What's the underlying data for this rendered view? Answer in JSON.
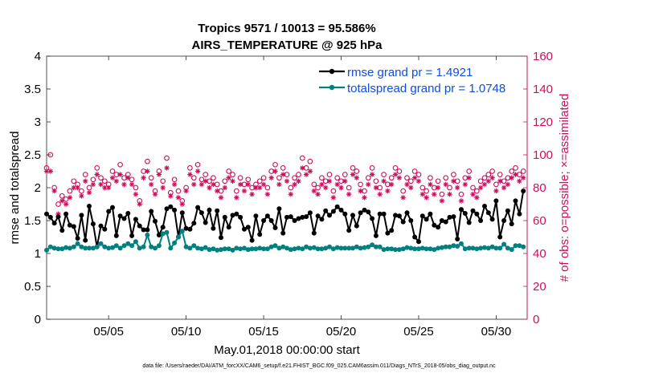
{
  "chart_data": {
    "type": "line",
    "title_line1": "Tropics 9571 / 10013 = 95.586%",
    "title_line2": "AIRS_TEMPERATURE @ 925 hPa",
    "xlabel": "May.01,2018 00:00:00 start",
    "ylabel_left": "rmse and totalspread",
    "ylabel_right": "# of obs: o=possible; ×=assimilated",
    "footer": "data file: /Users/raeder/DAI/ATM_forcXX/CAM6_setup/f.e21.FHIST_BGC.f09_025.CAM6assim.011/Diags_NTrS_2018-05/obs_diag_output.nc",
    "xlim": [
      1,
      32
    ],
    "ylim_left": [
      0,
      4
    ],
    "ylim_right": [
      0,
      160
    ],
    "x_ticks": [
      5,
      10,
      15,
      20,
      25,
      30
    ],
    "x_tick_labels": [
      "05/05",
      "05/10",
      "05/15",
      "05/20",
      "05/25",
      "05/30"
    ],
    "left_ticks": [
      "0",
      "0.5",
      "1",
      "1.5",
      "2",
      "2.5",
      "3",
      "3.5",
      "4"
    ],
    "right_ticks": [
      "0",
      "20",
      "40",
      "60",
      "80",
      "100",
      "120",
      "140",
      "160"
    ],
    "colors": {
      "rmse": "#000000",
      "spread": "#008080",
      "obs": "#cc0f5c",
      "legend_text": "#0f4ddc"
    },
    "n_points": 124,
    "x_start": 1.0,
    "x_step": 0.25,
    "series": [
      {
        "name": "rmse",
        "legend": "rmse grand pr = 1.4921",
        "values": [
          1.6,
          1.55,
          1.46,
          1.56,
          1.35,
          1.6,
          1.43,
          1.41,
          1.23,
          1.58,
          1.2,
          1.72,
          1.45,
          1.1,
          1.42,
          1.37,
          1.64,
          1.7,
          1.27,
          1.57,
          1.53,
          1.61,
          1.27,
          1.52,
          1.42,
          1.36,
          1.36,
          1.64,
          1.49,
          1.28,
          1.4,
          1.68,
          1.71,
          1.66,
          1.25,
          1.62,
          1.38,
          1.37,
          1.46,
          1.7,
          1.62,
          1.47,
          1.66,
          1.38,
          1.65,
          1.24,
          1.55,
          1.4,
          1.58,
          1.6,
          1.55,
          1.37,
          1.4,
          1.2,
          1.57,
          1.29,
          1.5,
          1.57,
          1.5,
          1.39,
          1.68,
          1.31,
          1.55,
          1.56,
          1.5,
          1.53,
          1.55,
          1.56,
          1.62,
          1.31,
          1.57,
          1.52,
          1.65,
          1.58,
          1.64,
          1.71,
          1.66,
          1.6,
          1.35,
          1.58,
          1.42,
          1.62,
          1.66,
          1.63,
          1.53,
          1.27,
          1.6,
          1.6,
          1.31,
          1.35,
          1.58,
          1.57,
          1.48,
          1.62,
          1.5,
          1.25,
          1.18,
          1.57,
          1.52,
          1.6,
          1.43,
          1.4,
          1.5,
          1.48,
          1.55,
          1.56,
          1.22,
          1.67,
          1.61,
          1.47,
          1.65,
          1.6,
          1.5,
          1.72,
          1.62,
          1.52,
          1.8,
          1.25,
          1.5,
          1.65,
          1.45,
          1.8,
          1.6,
          1.95
        ]
      },
      {
        "name": "totalspread",
        "legend": "totalspread grand pr = 1.0748",
        "values": [
          1.05,
          1.1,
          1.08,
          1.07,
          1.07,
          1.09,
          1.08,
          1.1,
          1.15,
          1.1,
          1.08,
          1.08,
          1.08,
          1.1,
          1.15,
          1.1,
          1.08,
          1.09,
          1.12,
          1.08,
          1.12,
          1.15,
          1.12,
          1.18,
          1.08,
          1.1,
          1.28,
          1.1,
          1.08,
          1.12,
          1.3,
          1.32,
          1.08,
          1.16,
          1.25,
          1.34,
          1.1,
          1.08,
          1.12,
          1.08,
          1.07,
          1.09,
          1.06,
          1.07,
          1.05,
          1.06,
          1.07,
          1.07,
          1.05,
          1.08,
          1.07,
          1.08,
          1.06,
          1.07,
          1.07,
          1.08,
          1.07,
          1.07,
          1.1,
          1.12,
          1.08,
          1.1,
          1.08,
          1.06,
          1.07,
          1.08,
          1.07,
          1.1,
          1.08,
          1.09,
          1.07,
          1.07,
          1.08,
          1.1,
          1.07,
          1.09,
          1.08,
          1.08,
          1.08,
          1.08,
          1.1,
          1.08,
          1.09,
          1.1,
          1.13,
          1.1,
          1.1,
          1.06,
          1.07,
          1.07,
          1.06,
          1.06,
          1.07,
          1.09,
          1.08,
          1.07,
          1.07,
          1.08,
          1.07,
          1.07,
          1.06,
          1.08,
          1.09,
          1.1,
          1.1,
          1.12,
          1.11,
          1.15,
          1.07,
          1.08,
          1.08,
          1.07,
          1.08,
          1.09,
          1.08,
          1.1,
          1.08,
          1.08,
          1.14,
          1.08,
          1.06,
          1.12,
          1.12,
          1.1
        ]
      }
    ],
    "obs_possible": [
      92,
      100,
      80,
      70,
      75,
      73,
      78,
      84,
      82,
      78,
      88,
      80,
      85,
      92,
      86,
      84,
      82,
      90,
      88,
      94,
      86,
      88,
      85,
      80,
      72,
      90,
      96,
      86,
      78,
      90,
      84,
      98,
      77,
      85,
      78,
      72,
      80,
      92,
      86,
      94,
      85,
      88,
      84,
      86,
      82,
      78,
      84,
      90,
      88,
      78,
      86,
      82,
      85,
      80,
      82,
      84,
      86,
      80,
      90,
      94,
      86,
      92,
      88,
      80,
      86,
      88,
      98,
      92,
      96,
      82,
      80,
      86,
      84,
      88,
      78,
      86,
      84,
      88,
      80,
      92,
      90,
      82,
      78,
      86,
      92,
      84,
      80,
      88,
      82,
      86,
      92,
      90,
      78,
      86,
      84,
      90,
      88,
      80,
      78,
      86,
      80,
      84,
      76,
      86,
      80,
      88,
      84,
      76,
      86,
      90,
      80,
      78,
      84,
      86,
      88,
      90,
      82,
      88,
      84,
      86,
      90,
      92,
      88,
      90
    ],
    "obs_assimilated": [
      90,
      90,
      78,
      64,
      72,
      70,
      74,
      80,
      80,
      75,
      84,
      77,
      82,
      88,
      82,
      80,
      80,
      86,
      84,
      88,
      82,
      86,
      82,
      76,
      70,
      86,
      90,
      82,
      76,
      88,
      80,
      92,
      75,
      82,
      74,
      70,
      78,
      88,
      82,
      90,
      82,
      84,
      80,
      82,
      78,
      74,
      80,
      86,
      84,
      74,
      82,
      78,
      82,
      76,
      80,
      80,
      82,
      76,
      86,
      90,
      82,
      88,
      84,
      76,
      82,
      84,
      92,
      88,
      90,
      78,
      76,
      82,
      80,
      84,
      74,
      82,
      80,
      84,
      76,
      88,
      86,
      78,
      74,
      82,
      88,
      80,
      76,
      84,
      78,
      82,
      88,
      86,
      74,
      82,
      80,
      86,
      84,
      76,
      74,
      82,
      76,
      80,
      72,
      82,
      76,
      84,
      80,
      72,
      82,
      86,
      76,
      74,
      80,
      82,
      84,
      86,
      78,
      84,
      80,
      82,
      86,
      88,
      84,
      86
    ]
  }
}
